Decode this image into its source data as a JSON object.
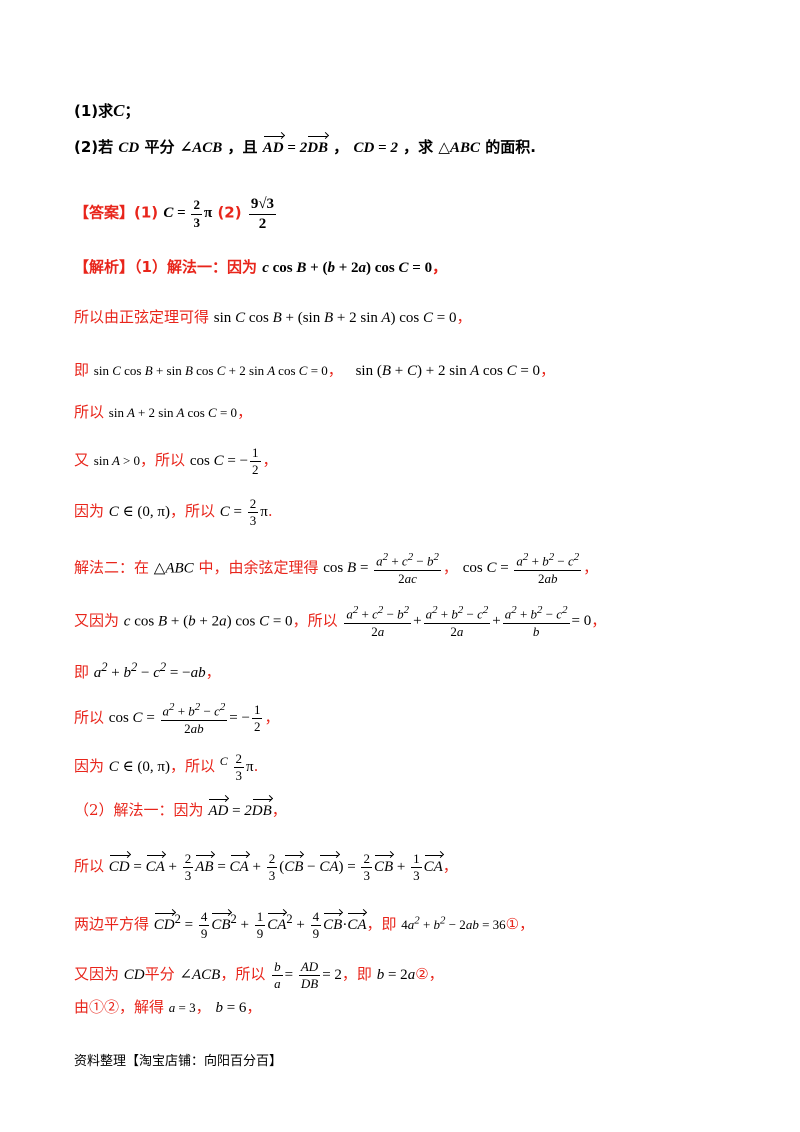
{
  "q1": "(1)求",
  "q1_var": "C",
  "q1_end": "；",
  "q2_a": "(2)若",
  "q2_b": "平分",
  "q2_c": "，且",
  "q2_d": "，",
  "q2_e": "，求",
  "q2_f": "的面积.",
  "answer_label": "【答案】",
  "answer_1": "(1)",
  "answer_2": "(2)",
  "analysis_label": "【解析】",
  "analysis_p1": "（1）解法一：因为",
  "l_suoyi_zhengxian": "所以由正弦定理可得",
  "l_ji": "即",
  "l_suoyi": "所以",
  "l_you": "又",
  "l_you_suoyi": "，所以",
  "l_yinwei": "因为",
  "l_jiefa2": "解法二：在",
  "l_jiefa2_b": "中，由余弦定理得",
  "l_youyinwei": "又因为",
  "l_p2": "（2）解法一：因为",
  "l_liangbian": "两边平方得",
  "l_ji2": "，即",
  "l_youyinwei2": "又因为",
  "l_pingfen": "平分",
  "l_ji3": "，即",
  "l_you12": "由①②，解得",
  "comma": "，",
  "circle1": "①",
  "circle2": "②",
  "footer": "资料整理【淘宝店铺：向阳百分百】"
}
